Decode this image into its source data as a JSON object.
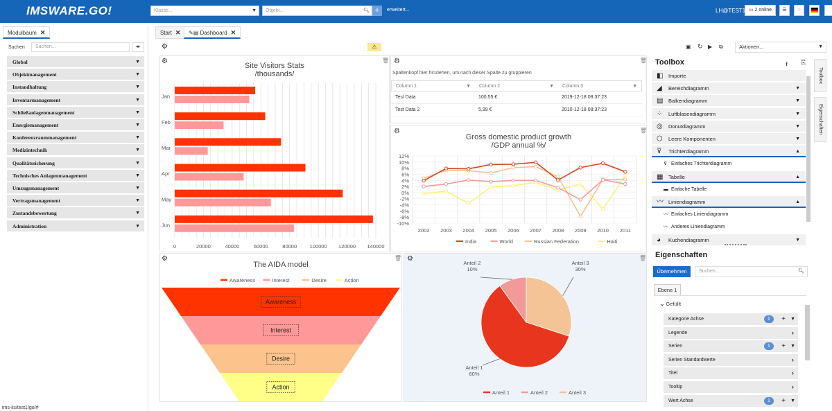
{
  "app": {
    "logo": "IMSWARE.GO!",
    "class_placeholder": "Klasse...",
    "object_placeholder": "Objekt...",
    "advanced": "erweitert...",
    "user": "LH@TEST1",
    "online": "2 online"
  },
  "left": {
    "tab": "Modulbaum",
    "search_label": "Suchen",
    "search_placeholder": "Suchen...",
    "items": [
      "Global",
      "Objektmanagement",
      "Instandhaltung",
      "Inventarmanagement",
      "Schließanlagenmanagement",
      "Energiemanagement",
      "Konferenzraummanagement",
      "Medizintechnik",
      "Qualitätssicherung",
      "Technisches Anlagenmanagement",
      "Umzugsmanagement",
      "Vertragsmanagement",
      "Zustandsbewertung",
      "Administration"
    ]
  },
  "tabs": {
    "start": "Start",
    "dashboard": "Dashboard"
  },
  "actions": "Aktionen...",
  "visitors": {
    "title1": "Site Visitors Stats",
    "title2": "/thousands/",
    "categories": [
      "Jan",
      "Feb",
      "Mar",
      "Apr",
      "May",
      "Jun"
    ],
    "series_a": [
      56000,
      63000,
      74000,
      91000,
      117000,
      138000
    ],
    "series_b": [
      52000,
      34000,
      23000,
      48000,
      67000,
      83000
    ],
    "ticks": [
      "0",
      "20000",
      "40000",
      "60000",
      "80000",
      "100000",
      "120000",
      "140000"
    ],
    "colors": [
      "#ff3300",
      "#ff9999"
    ]
  },
  "grid": {
    "group_hint": "Spaltenkopf hier hinziehen, um nach dieser Spalte zu gruppieren",
    "columns": [
      "Column 1",
      "Column 2",
      "Column 3"
    ],
    "rows": [
      [
        "Test Data",
        "100,55 €",
        "2019-12-18 08:37:23"
      ],
      [
        "Test Data 2",
        "5,99 €",
        "2010-12-18 08:37:23"
      ]
    ]
  },
  "gdp": {
    "title1": "Gross domestic product growth",
    "title2": "/GDP annual %/",
    "years": [
      "2002",
      "2003",
      "2004",
      "2005",
      "2006",
      "2007",
      "2008",
      "2009",
      "2010",
      "2011"
    ],
    "yticks": [
      "12%",
      "10%",
      "8%",
      "6%",
      "4%",
      "2%",
      "0%",
      "-2%",
      "-4%",
      "-6%",
      "-8%",
      "-10%"
    ],
    "series": [
      {
        "name": "India",
        "color": "#d9451f",
        "values": [
          3.9,
          7.9,
          7.8,
          9.2,
          9.3,
          9.9,
          4.1,
          8.2,
          9.6,
          6.8
        ]
      },
      {
        "name": "World",
        "color": "#f29b9b",
        "values": [
          2,
          2.8,
          4.1,
          3.6,
          4,
          4,
          1.6,
          -2.3,
          4.2,
          2.8
        ]
      },
      {
        "name": "Russian Federation",
        "color": "#f5c18f",
        "values": [
          4.7,
          7.3,
          7.2,
          6.4,
          8.2,
          8.5,
          5.2,
          -7.8,
          4.3,
          4.3
        ]
      },
      {
        "name": "Haiti",
        "color": "#fff07a",
        "values": [
          -0.3,
          0.4,
          -3.5,
          1.8,
          2.3,
          3.3,
          0.8,
          2.9,
          -5.4,
          5.6
        ]
      }
    ]
  },
  "aida": {
    "title": "The AIDA model",
    "stages": [
      "Awareness",
      "Interest",
      "Desire",
      "Action"
    ],
    "colors": [
      "#ff3300",
      "#ff9999",
      "#fcc38d",
      "#ffff88"
    ]
  },
  "pie": {
    "slices": [
      {
        "name": "Anteil 1",
        "value": 60,
        "label": "60%",
        "color": "#e8351d"
      },
      {
        "name": "Anteil 2",
        "value": 10,
        "label": "10%",
        "color": "#f29a9a"
      },
      {
        "name": "Anteil 3",
        "value": 30,
        "label": "30%",
        "color": "#f4c396"
      }
    ]
  },
  "toolbox": {
    "title": "Toolbox",
    "items": [
      {
        "label": "Importe",
        "icon": "◧",
        "type": "item",
        "ar": ""
      },
      {
        "label": "Bereichdiagramm",
        "icon": "◢",
        "type": "item",
        "ar": "▼"
      },
      {
        "label": "Balkendiagramm",
        "icon": "▤",
        "type": "item",
        "ar": "▼"
      },
      {
        "label": "Luftblasendiagramm",
        "icon": "⁘",
        "type": "item",
        "ar": "▼"
      },
      {
        "label": "Donutdiagramm",
        "icon": "◎",
        "type": "item",
        "ar": "▼"
      },
      {
        "label": "Leere Komponenten",
        "icon": "⬡",
        "type": "item",
        "ar": "▼"
      },
      {
        "label": "Trichterdiagramm",
        "icon": "⊽",
        "type": "item",
        "ar": "▲"
      },
      {
        "label": "Einfaches Trichterdiagramm",
        "icon": "⊽",
        "type": "sub",
        "ar": ""
      },
      {
        "label": "Tabelle",
        "icon": "▦",
        "type": "item",
        "ar": "▲"
      },
      {
        "label": "Einfache Tabelle",
        "icon": "▬",
        "type": "sub",
        "ar": ""
      },
      {
        "label": "Liniendiagramm",
        "icon": "〰",
        "type": "item",
        "ar": "▲"
      },
      {
        "label": "Einfaches Liniendiagramm",
        "icon": "〰",
        "type": "sub",
        "ar": ""
      },
      {
        "label": "Anderes Liniendiagramm",
        "icon": "〰",
        "type": "sub",
        "ar": ""
      },
      {
        "label": "Kuchendiagramm",
        "icon": "◕",
        "type": "item",
        "ar": "▼"
      }
    ],
    "vtab1": "Toolbox",
    "vtab2": "Eigenschaften"
  },
  "props": {
    "title": "Eigenschaften",
    "apply": "Übernehmen",
    "search_placeholder": "Suchen...",
    "level": "Ebene 1",
    "filled": "Gefüllt",
    "items": [
      {
        "label": "Kategorie Achse",
        "badge": "1"
      },
      {
        "label": "Legende",
        "badge": ""
      },
      {
        "label": "Serien",
        "badge": "1"
      },
      {
        "label": "Serien Standardwerte",
        "badge": ""
      },
      {
        "label": "Titel",
        "badge": ""
      },
      {
        "label": "Tooltip",
        "badge": ""
      },
      {
        "label": "Wert Achse",
        "badge": "1"
      }
    ]
  },
  "status": "ims-iis/test1/go/#"
}
